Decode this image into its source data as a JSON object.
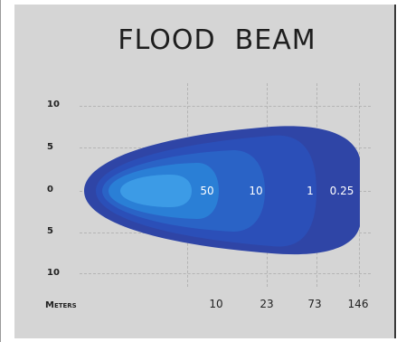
{
  "title": "FLOOD BEAM",
  "y_axis_labels": [
    "10",
    "5",
    "0",
    "5",
    "10"
  ],
  "x_axis_title": "Meters",
  "x_axis_labels": [
    "10",
    "23",
    "73",
    "146"
  ],
  "zone_labels": [
    "50",
    "10",
    "1",
    "0.25"
  ],
  "colors": {
    "background": "#d5d5d5",
    "zone_outer": "#2f45a6",
    "zone_2": "#2b4fb8",
    "zone_3": "#2a63c6",
    "zone_inner": "#2a7fd6",
    "zone_core": "#3c9be6"
  }
}
